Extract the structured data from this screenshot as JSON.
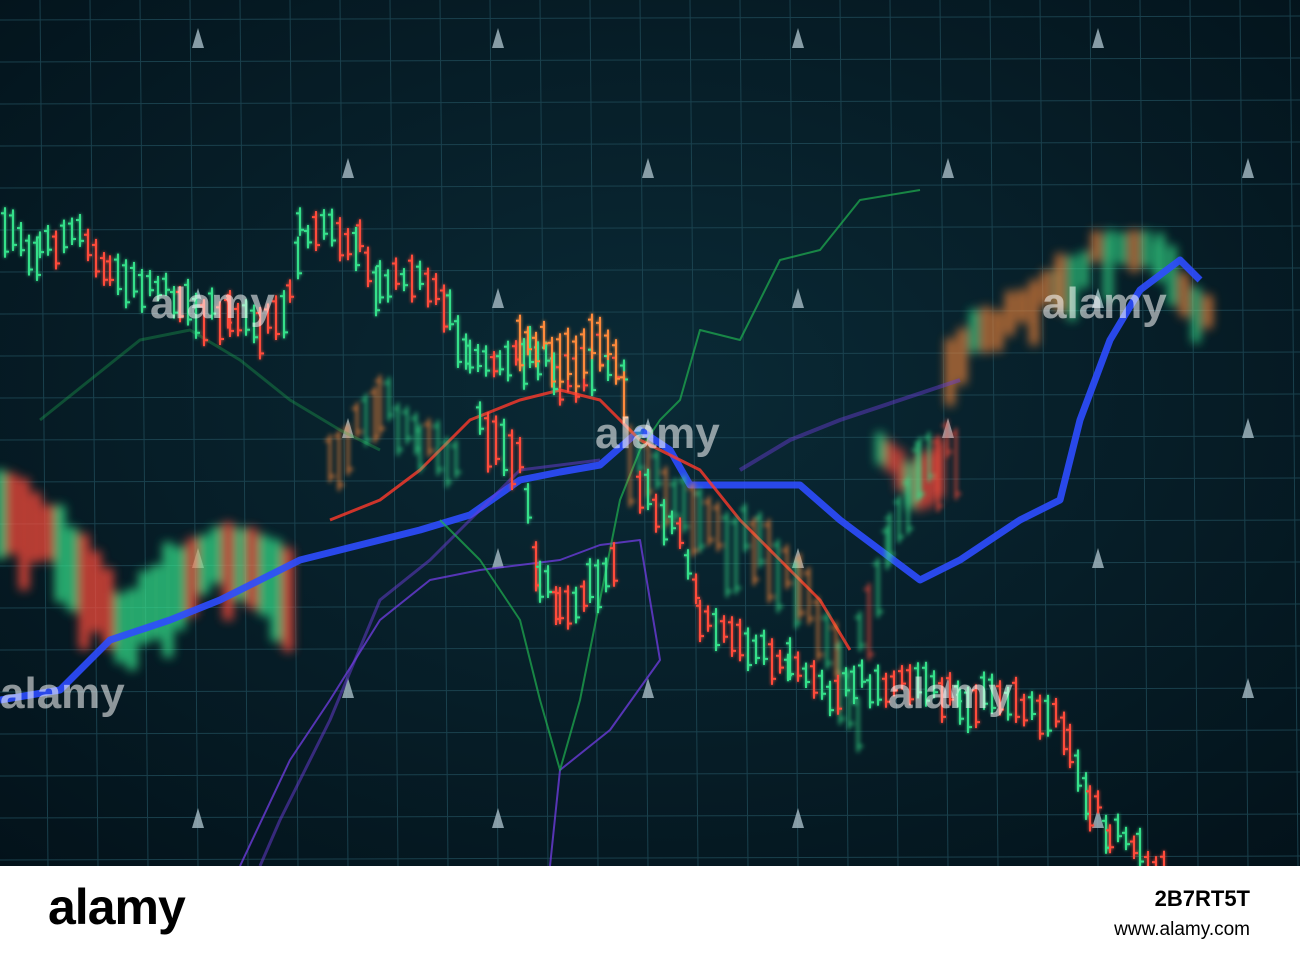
{
  "photo": {
    "subject": "stock-market-candlestick-screen",
    "colors": {
      "background": "#051c26",
      "grid": "#1f4a57",
      "up_candle": "#34e08a",
      "down_candle": "#ff4b3a",
      "orange_candle": "#ff8a3a",
      "ma_blue": "#2e4cff",
      "ma_purple": "#6a3bd8",
      "ma_green": "#1fb050",
      "ma_red": "#ff3a2a"
    },
    "watermark_text": "alamy"
  },
  "footer": {
    "logo": "alamy",
    "image_id": "2B7RT5T",
    "url": "www.alamy.com"
  }
}
